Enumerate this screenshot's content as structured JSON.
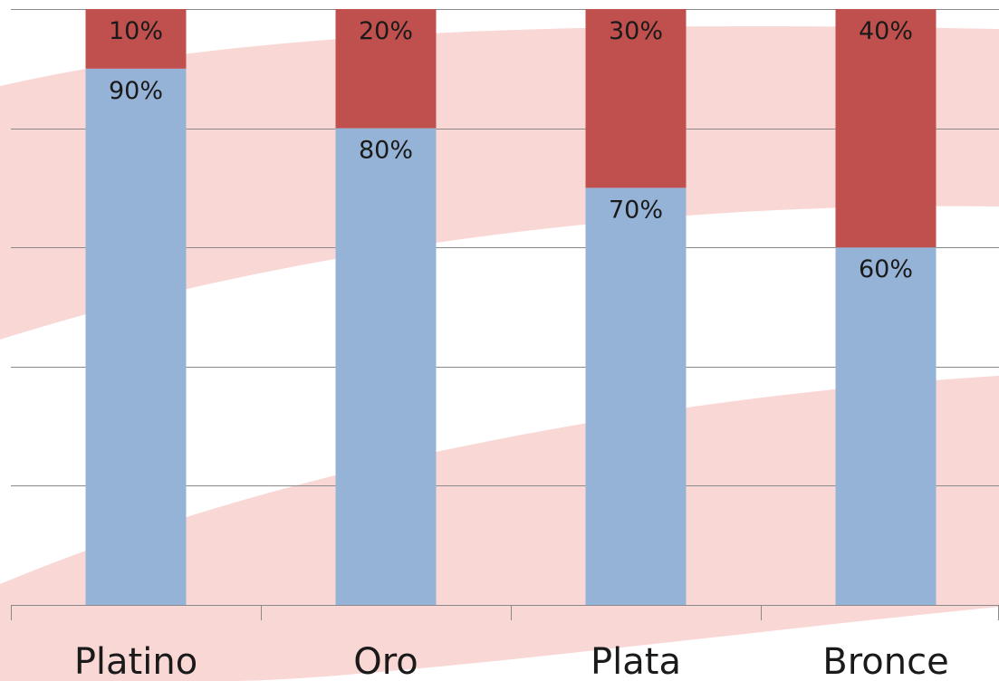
{
  "chart_data": {
    "type": "bar",
    "stacked": true,
    "categories": [
      "Platino",
      "Oro",
      "Plata",
      "Bronce"
    ],
    "series": [
      {
        "values": [
          90,
          80,
          70,
          60
        ],
        "labels": [
          "90%",
          "80%",
          "70%",
          "60%"
        ],
        "color": "#95B3D7"
      },
      {
        "values": [
          10,
          20,
          30,
          40
        ],
        "labels": [
          "10%",
          "20%",
          "30%",
          "40%"
        ],
        "color": "#C0504D"
      }
    ],
    "ylim": [
      0,
      100
    ],
    "grid": true,
    "legend": "none",
    "background_swoosh_color": "#F9D7D5"
  }
}
